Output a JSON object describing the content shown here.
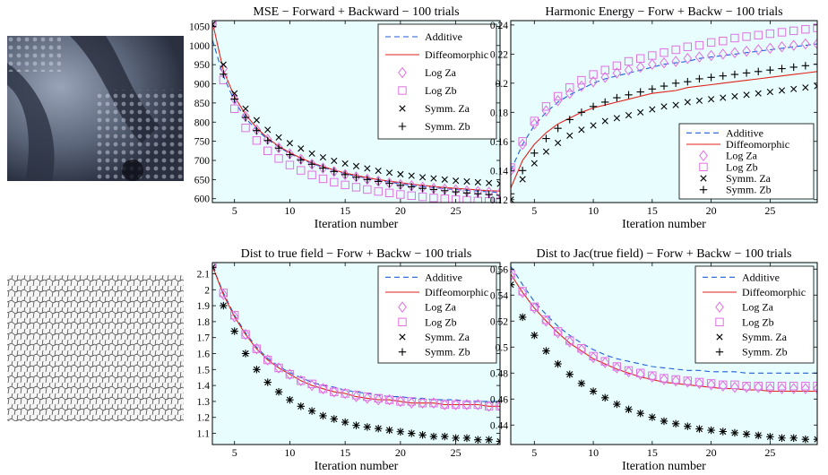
{
  "colors": {
    "background": "#e8fefe",
    "additive": "#1f5fd6",
    "diffeomorphic": "#e0221c",
    "log_markers": "#e070e0",
    "symm_markers": "#000000"
  },
  "images": [
    {
      "description_icon": "texture-image-icon"
    },
    {
      "description_icon": "crack-mesh-image-icon"
    }
  ],
  "chart_data": [
    {
      "type": "line",
      "title": "MSE − Forward + Backward − 100 trials",
      "xlabel": "Iteration number",
      "ylabel": "",
      "xlim": [
        3,
        29
      ],
      "ylim": [
        590,
        1065
      ],
      "xticks": [
        5,
        10,
        15,
        20,
        25
      ],
      "yticks": [
        600,
        650,
        700,
        750,
        800,
        850,
        900,
        950,
        1000,
        1050
      ],
      "legend_position": "top-right",
      "x": [
        3,
        4,
        5,
        6,
        7,
        8,
        9,
        10,
        11,
        12,
        13,
        14,
        15,
        16,
        17,
        18,
        19,
        20,
        21,
        22,
        23,
        24,
        25,
        26,
        27,
        28,
        29
      ],
      "series": [
        {
          "name": "Additive",
          "style": "dashed",
          "values": [
            1015,
            920,
            855,
            810,
            780,
            755,
            735,
            718,
            704,
            692,
            682,
            673,
            665,
            659,
            653,
            648,
            643,
            639,
            635,
            632,
            629,
            626,
            624,
            622,
            620,
            618,
            616
          ]
        },
        {
          "name": "Diffeomorphic",
          "style": "solid",
          "values": [
            1062,
            935,
            866,
            820,
            785,
            758,
            737,
            720,
            706,
            694,
            684,
            675,
            667,
            661,
            655,
            650,
            646,
            642,
            638,
            635,
            632,
            629,
            627,
            625,
            623,
            621,
            620
          ]
        },
        {
          "name": "Log Za",
          "style": "diamond",
          "values": [
            1060,
            940,
            860,
            815,
            780,
            755,
            733,
            717,
            703,
            690,
            680,
            671,
            663,
            657,
            651,
            646,
            641,
            637,
            634,
            630,
            627,
            625,
            623,
            620,
            619,
            617,
            615
          ]
        },
        {
          "name": "Log Zb",
          "style": "square",
          "values": [
            1058,
            910,
            835,
            785,
            752,
            725,
            705,
            688,
            674,
            662,
            652,
            643,
            636,
            630,
            624,
            619,
            615,
            611,
            608,
            605,
            602,
            600,
            598,
            596,
            594,
            593,
            592
          ]
        },
        {
          "name": "Symm. Za",
          "style": "x",
          "values": [
            1055,
            950,
            875,
            835,
            805,
            780,
            760,
            745,
            731,
            718,
            708,
            699,
            692,
            685,
            679,
            673,
            668,
            664,
            660,
            656,
            653,
            650,
            647,
            645,
            643,
            641,
            639
          ]
        },
        {
          "name": "Symm. Zb",
          "style": "plus",
          "values": [
            1050,
            925,
            860,
            812,
            778,
            752,
            732,
            715,
            701,
            690,
            680,
            671,
            663,
            656,
            650,
            645,
            640,
            635,
            631,
            627,
            624,
            621,
            618,
            615,
            613,
            611,
            609
          ]
        }
      ]
    },
    {
      "type": "line",
      "title": "Harmonic Energy − Forw + Backw − 100 trials",
      "xlabel": "Iteration number",
      "ylabel": "",
      "xlim": [
        3,
        29
      ],
      "ylim": [
        0.118,
        0.243
      ],
      "xticks": [
        5,
        10,
        15,
        20,
        25
      ],
      "yticks": [
        0.12,
        0.14,
        0.16,
        0.18,
        0.2,
        0.22,
        0.24
      ],
      "legend_position": "bottom-right",
      "x": [
        3,
        4,
        5,
        6,
        7,
        8,
        9,
        10,
        11,
        12,
        13,
        14,
        15,
        16,
        17,
        18,
        19,
        20,
        21,
        22,
        23,
        24,
        25,
        26,
        27,
        28,
        29
      ],
      "series": [
        {
          "name": "Additive",
          "style": "dashed",
          "values": [
            0.14,
            0.158,
            0.171,
            0.18,
            0.187,
            0.192,
            0.196,
            0.2,
            0.203,
            0.205,
            0.207,
            0.209,
            0.211,
            0.213,
            0.214,
            0.215,
            0.217,
            0.218,
            0.219,
            0.22,
            0.221,
            0.222,
            0.223,
            0.224,
            0.225,
            0.226,
            0.227
          ]
        },
        {
          "name": "Diffeomorphic",
          "style": "solid",
          "values": [
            0.128,
            0.147,
            0.158,
            0.166,
            0.172,
            0.176,
            0.18,
            0.183,
            0.185,
            0.187,
            0.189,
            0.191,
            0.193,
            0.194,
            0.195,
            0.197,
            0.198,
            0.199,
            0.2,
            0.201,
            0.202,
            0.203,
            0.204,
            0.205,
            0.206,
            0.207,
            0.208
          ]
        },
        {
          "name": "Log Za",
          "style": "diamond",
          "values": [
            0.14,
            0.158,
            0.172,
            0.181,
            0.188,
            0.193,
            0.198,
            0.201,
            0.204,
            0.207,
            0.209,
            0.211,
            0.213,
            0.214,
            0.215,
            0.217,
            0.218,
            0.219,
            0.22,
            0.221,
            0.222,
            0.223,
            0.224,
            0.225,
            0.226,
            0.227,
            0.227
          ]
        },
        {
          "name": "Log Zb",
          "style": "square",
          "values": [
            0.142,
            0.16,
            0.174,
            0.184,
            0.191,
            0.197,
            0.202,
            0.206,
            0.209,
            0.212,
            0.215,
            0.217,
            0.219,
            0.221,
            0.223,
            0.225,
            0.226,
            0.228,
            0.229,
            0.231,
            0.232,
            0.233,
            0.234,
            0.235,
            0.236,
            0.237,
            0.238
          ]
        },
        {
          "name": "Symm. Za",
          "style": "x",
          "values": [
            0.12,
            0.134,
            0.145,
            0.153,
            0.159,
            0.164,
            0.168,
            0.171,
            0.174,
            0.176,
            0.178,
            0.18,
            0.182,
            0.184,
            0.185,
            0.187,
            0.188,
            0.189,
            0.19,
            0.191,
            0.192,
            0.193,
            0.194,
            0.195,
            0.196,
            0.197,
            0.198
          ]
        },
        {
          "name": "Symm. Zb",
          "style": "plus",
          "values": [
            0.124,
            0.14,
            0.152,
            0.162,
            0.169,
            0.175,
            0.18,
            0.184,
            0.187,
            0.19,
            0.192,
            0.194,
            0.196,
            0.198,
            0.2,
            0.201,
            0.203,
            0.204,
            0.205,
            0.206,
            0.207,
            0.208,
            0.209,
            0.21,
            0.211,
            0.212,
            0.213
          ]
        }
      ]
    },
    {
      "type": "line",
      "title": "Dist to true field − Forw + Backw − 100 trials",
      "xlabel": "Iteration number",
      "ylabel": "",
      "xlim": [
        3,
        29
      ],
      "ylim": [
        1.03,
        2.17
      ],
      "xticks": [
        5,
        10,
        15,
        20,
        25
      ],
      "yticks": [
        1.1,
        1.2,
        1.3,
        1.4,
        1.5,
        1.6,
        1.7,
        1.8,
        1.9,
        2,
        2.1
      ],
      "legend_position": "top-right",
      "x": [
        3,
        4,
        5,
        6,
        7,
        8,
        9,
        10,
        11,
        12,
        13,
        14,
        15,
        16,
        17,
        18,
        19,
        20,
        21,
        22,
        23,
        24,
        25,
        26,
        27,
        28,
        29
      ],
      "series": [
        {
          "name": "Additive",
          "style": "dashed",
          "values": [
            2.15,
            1.98,
            1.84,
            1.73,
            1.64,
            1.57,
            1.52,
            1.48,
            1.45,
            1.42,
            1.4,
            1.39,
            1.37,
            1.36,
            1.35,
            1.34,
            1.33,
            1.33,
            1.32,
            1.32,
            1.31,
            1.31,
            1.31,
            1.3,
            1.3,
            1.3,
            1.3
          ]
        },
        {
          "name": "Diffeomorphic",
          "style": "solid",
          "values": [
            2.15,
            1.97,
            1.83,
            1.72,
            1.63,
            1.56,
            1.51,
            1.47,
            1.43,
            1.4,
            1.38,
            1.36,
            1.35,
            1.33,
            1.32,
            1.31,
            1.31,
            1.3,
            1.29,
            1.29,
            1.29,
            1.28,
            1.28,
            1.28,
            1.28,
            1.27,
            1.27
          ]
        },
        {
          "name": "Log Za",
          "style": "diamond",
          "values": [
            2.15,
            1.97,
            1.83,
            1.72,
            1.63,
            1.56,
            1.51,
            1.47,
            1.43,
            1.4,
            1.38,
            1.36,
            1.35,
            1.33,
            1.32,
            1.31,
            1.31,
            1.3,
            1.29,
            1.29,
            1.29,
            1.28,
            1.28,
            1.28,
            1.28,
            1.27,
            1.27
          ]
        },
        {
          "name": "Log Zb",
          "style": "square",
          "values": [
            2.16,
            1.98,
            1.84,
            1.72,
            1.63,
            1.56,
            1.51,
            1.47,
            1.43,
            1.41,
            1.38,
            1.36,
            1.35,
            1.34,
            1.33,
            1.32,
            1.31,
            1.3,
            1.3,
            1.29,
            1.29,
            1.28,
            1.28,
            1.28,
            1.28,
            1.27,
            1.27
          ]
        },
        {
          "name": "Symm. Za",
          "style": "x",
          "values": [
            2.14,
            1.9,
            1.74,
            1.6,
            1.5,
            1.42,
            1.36,
            1.31,
            1.27,
            1.24,
            1.21,
            1.19,
            1.17,
            1.15,
            1.14,
            1.13,
            1.12,
            1.11,
            1.1,
            1.09,
            1.08,
            1.08,
            1.07,
            1.07,
            1.06,
            1.06,
            1.05
          ]
        },
        {
          "name": "Symm. Zb",
          "style": "plus",
          "values": [
            2.14,
            1.9,
            1.74,
            1.6,
            1.5,
            1.42,
            1.36,
            1.31,
            1.27,
            1.24,
            1.21,
            1.19,
            1.17,
            1.15,
            1.14,
            1.13,
            1.12,
            1.11,
            1.1,
            1.09,
            1.08,
            1.08,
            1.07,
            1.07,
            1.06,
            1.06,
            1.05
          ]
        }
      ]
    },
    {
      "type": "line",
      "title": "Dist to Jac(true field) − Forw + Backw − 100 trials",
      "xlabel": "Iteration number",
      "ylabel": "",
      "xlim": [
        3,
        29
      ],
      "ylim": [
        0.425,
        0.565
      ],
      "xticks": [
        5,
        10,
        15,
        20,
        25
      ],
      "yticks": [
        0.44,
        0.46,
        0.48,
        0.5,
        0.52,
        0.54,
        0.56
      ],
      "legend_position": "top-right",
      "x": [
        3,
        4,
        5,
        6,
        7,
        8,
        9,
        10,
        11,
        12,
        13,
        14,
        15,
        16,
        17,
        18,
        19,
        20,
        21,
        22,
        23,
        24,
        25,
        26,
        27,
        28,
        29
      ],
      "series": [
        {
          "name": "Additive",
          "style": "dashed",
          "values": [
            0.562,
            0.548,
            0.535,
            0.525,
            0.516,
            0.509,
            0.503,
            0.498,
            0.494,
            0.491,
            0.489,
            0.487,
            0.485,
            0.484,
            0.483,
            0.482,
            0.482,
            0.481,
            0.481,
            0.481,
            0.48,
            0.48,
            0.48,
            0.48,
            0.48,
            0.48,
            0.48
          ]
        },
        {
          "name": "Diffeomorphic",
          "style": "solid",
          "values": [
            0.556,
            0.542,
            0.53,
            0.52,
            0.511,
            0.503,
            0.497,
            0.491,
            0.487,
            0.483,
            0.48,
            0.477,
            0.475,
            0.473,
            0.472,
            0.471,
            0.47,
            0.469,
            0.468,
            0.468,
            0.467,
            0.467,
            0.466,
            0.466,
            0.466,
            0.466,
            0.466
          ]
        },
        {
          "name": "Log Za",
          "style": "diamond",
          "values": [
            0.555,
            0.542,
            0.53,
            0.52,
            0.511,
            0.504,
            0.498,
            0.492,
            0.488,
            0.484,
            0.481,
            0.479,
            0.477,
            0.475,
            0.474,
            0.473,
            0.472,
            0.471,
            0.47,
            0.469,
            0.469,
            0.469,
            0.468,
            0.468,
            0.468,
            0.468,
            0.468
          ]
        },
        {
          "name": "Log Zb",
          "style": "square",
          "values": [
            0.556,
            0.543,
            0.531,
            0.521,
            0.512,
            0.505,
            0.499,
            0.493,
            0.489,
            0.485,
            0.482,
            0.48,
            0.478,
            0.476,
            0.475,
            0.474,
            0.473,
            0.472,
            0.471,
            0.471,
            0.47,
            0.47,
            0.47,
            0.47,
            0.47,
            0.47,
            0.47
          ]
        },
        {
          "name": "Symm. Za",
          "style": "x",
          "values": [
            0.548,
            0.523,
            0.509,
            0.497,
            0.487,
            0.479,
            0.472,
            0.466,
            0.461,
            0.456,
            0.452,
            0.449,
            0.446,
            0.443,
            0.441,
            0.439,
            0.437,
            0.436,
            0.435,
            0.434,
            0.433,
            0.432,
            0.431,
            0.43,
            0.43,
            0.429,
            0.429
          ]
        },
        {
          "name": "Symm. Zb",
          "style": "plus",
          "values": [
            0.548,
            0.523,
            0.509,
            0.497,
            0.487,
            0.479,
            0.472,
            0.466,
            0.461,
            0.456,
            0.452,
            0.449,
            0.446,
            0.443,
            0.441,
            0.439,
            0.437,
            0.436,
            0.435,
            0.434,
            0.433,
            0.432,
            0.431,
            0.43,
            0.43,
            0.429,
            0.429
          ]
        }
      ]
    }
  ]
}
